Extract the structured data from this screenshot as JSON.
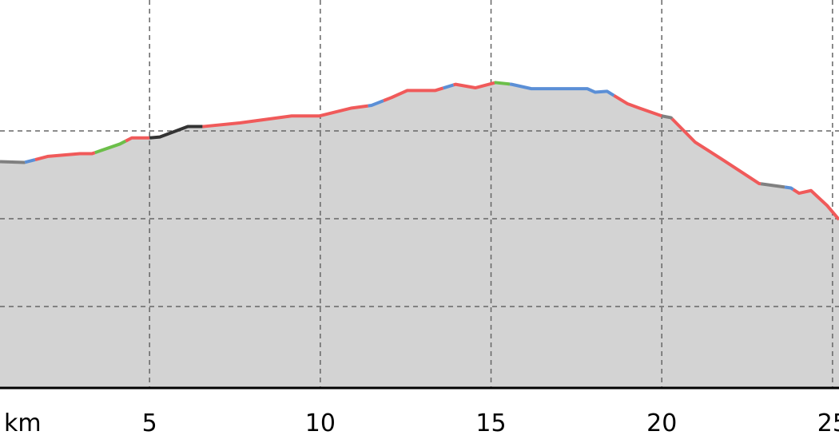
{
  "chart_data": {
    "type": "area",
    "title": "",
    "xlabel": "km",
    "ylabel": "",
    "x_ticks": [
      5,
      10,
      15,
      20,
      25
    ],
    "x_tick_labels": [
      "5",
      "10",
      "15",
      "20",
      "25"
    ],
    "x_unit_label": "km",
    "xlim": [
      0.62,
      25.19
    ],
    "ylim": [
      0.073,
      4.49
    ],
    "y_gridlines": [
      1,
      2,
      3
    ],
    "grid": true,
    "fill_color": "#d3d3d3",
    "profile": {
      "x": [
        0.62,
        1.33,
        2.03,
        2.96,
        3.31,
        4.13,
        4.48,
        5.0,
        5.3,
        6.12,
        6.59,
        7.64,
        9.16,
        9.98,
        10.92,
        11.5,
        12.09,
        12.55,
        13.37,
        13.96,
        14.54,
        15.13,
        15.6,
        16.18,
        17.82,
        18.05,
        18.4,
        18.99,
        19.34,
        20.0,
        20.27,
        20.98,
        21.79,
        22.26,
        22.85,
        23.78,
        24.02,
        24.37,
        24.84,
        25.19
      ],
      "y": [
        2.65,
        2.64,
        2.71,
        2.74,
        2.74,
        2.85,
        2.92,
        2.92,
        2.93,
        3.05,
        3.05,
        3.09,
        3.17,
        3.17,
        3.26,
        3.29,
        3.38,
        3.46,
        3.46,
        3.53,
        3.49,
        3.55,
        3.53,
        3.48,
        3.48,
        3.44,
        3.45,
        3.31,
        3.26,
        3.17,
        3.15,
        2.87,
        2.67,
        2.55,
        2.4,
        2.35,
        2.29,
        2.32,
        2.15,
        1.99
      ]
    },
    "segments": [
      {
        "from": 0.62,
        "to": 1.35,
        "color": "#808080"
      },
      {
        "from": 1.35,
        "to": 1.65,
        "color": "#5b8fd6"
      },
      {
        "from": 1.65,
        "to": 3.4,
        "color": "#f05a5a"
      },
      {
        "from": 3.4,
        "to": 4.3,
        "color": "#6cbf4a"
      },
      {
        "from": 4.3,
        "to": 5.0,
        "color": "#f05a5a"
      },
      {
        "from": 5.0,
        "to": 6.55,
        "color": "#333333"
      },
      {
        "from": 6.55,
        "to": 11.4,
        "color": "#f05a5a"
      },
      {
        "from": 11.4,
        "to": 11.85,
        "color": "#5b8fd6"
      },
      {
        "from": 11.85,
        "to": 13.6,
        "color": "#f05a5a"
      },
      {
        "from": 13.6,
        "to": 13.9,
        "color": "#5b8fd6"
      },
      {
        "from": 13.9,
        "to": 15.1,
        "color": "#f05a5a"
      },
      {
        "from": 15.1,
        "to": 15.55,
        "color": "#6cbf4a"
      },
      {
        "from": 15.55,
        "to": 18.6,
        "color": "#5b8fd6"
      },
      {
        "from": 18.6,
        "to": 20.0,
        "color": "#f05a5a"
      },
      {
        "from": 20.0,
        "to": 20.3,
        "color": "#808080"
      },
      {
        "from": 20.3,
        "to": 22.9,
        "color": "#f05a5a"
      },
      {
        "from": 22.9,
        "to": 23.6,
        "color": "#808080"
      },
      {
        "from": 23.6,
        "to": 23.85,
        "color": "#5b8fd6"
      },
      {
        "from": 23.85,
        "to": 25.19,
        "color": "#f05a5a"
      }
    ]
  }
}
